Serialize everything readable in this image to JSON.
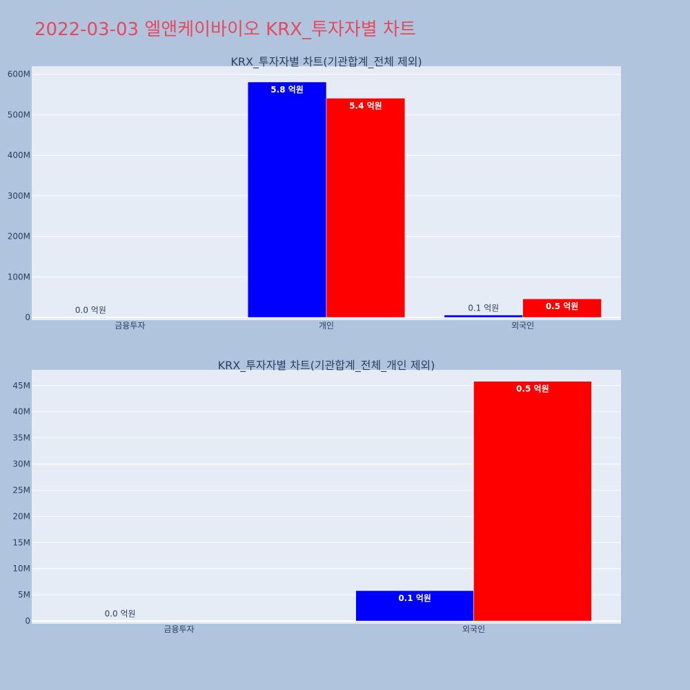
{
  "page_title": "2022-03-03 엘앤케이바이오 KRX_투자자별 차트",
  "colors": {
    "background": "#b0c4de",
    "plot_bg": "#e5ecf6",
    "grid": "#ffffff",
    "title": "#e8485c",
    "text": "#2a3f5f",
    "series_a": "#0000ff",
    "series_b": "#ff0000"
  },
  "chart_data": [
    {
      "type": "bar",
      "title": "KRX_투자자별 차트(기관합계_전체 제외)",
      "categories": [
        "금융투자",
        "개인",
        "외국인"
      ],
      "series": [
        {
          "color": "#0000ff",
          "values": [
            0,
            581000000,
            5800000
          ],
          "labels": [
            "0.0 억원",
            "5.8 억원",
            "0.1 억원"
          ]
        },
        {
          "color": "#ff0000",
          "values": [
            null,
            541000000,
            45800000
          ],
          "labels": [
            null,
            "5.4 억원",
            "0.5 억원"
          ]
        }
      ],
      "ylim": [
        0,
        620000000
      ],
      "yticks": [
        0,
        100000000,
        200000000,
        300000000,
        400000000,
        500000000,
        600000000
      ],
      "ytick_labels": [
        "0",
        "100M",
        "200M",
        "300M",
        "400M",
        "500M",
        "600M"
      ],
      "grid": true
    },
    {
      "type": "bar",
      "title": "KRX_투자자별 차트(기관합계_전체_개인 제외)",
      "categories": [
        "금융투자",
        "외국인"
      ],
      "series": [
        {
          "color": "#0000ff",
          "values": [
            0,
            5800000
          ],
          "labels": [
            "0.0 억원",
            "0.1 억원"
          ]
        },
        {
          "color": "#ff0000",
          "values": [
            null,
            45800000
          ],
          "labels": [
            null,
            "0.5 억원"
          ]
        }
      ],
      "ylim": [
        0,
        48000000
      ],
      "yticks": [
        0,
        5000000,
        10000000,
        15000000,
        20000000,
        25000000,
        30000000,
        35000000,
        40000000,
        45000000
      ],
      "ytick_labels": [
        "0",
        "5M",
        "10M",
        "15M",
        "20M",
        "25M",
        "30M",
        "35M",
        "40M",
        "45M"
      ],
      "grid": true
    }
  ]
}
